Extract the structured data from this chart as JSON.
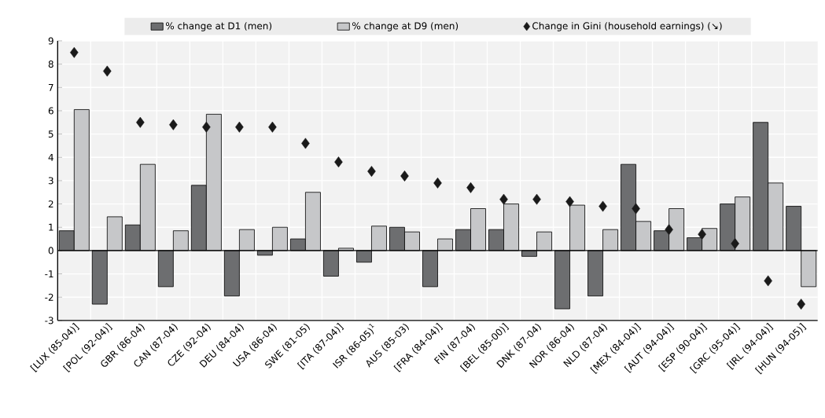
{
  "chart_data": {
    "type": "bar",
    "categories": [
      "[LUX (85-04)]",
      "[POL (92-04)]",
      "GBR (86-04)",
      "CAN (87-04)",
      "CZE (92-04)",
      "DEU (84-04)",
      "USA (86-04)",
      "SWE (81-05)",
      "[ITA (87-04)]",
      "ISR (86-05)$^{1}$",
      "AUS (85-03)",
      "[FRA (84-04)]",
      "FIN (87-04)",
      "[BEL (85-00)]",
      "DNK (87-04)",
      "NOR (86-04)",
      "NLD (87-04)",
      "[MEX (84-04)]",
      "[AUT (94-04)]",
      "[ESP (90-04)]",
      "[GRC (95-04)]",
      "[IRL (94-04)]",
      "[HUN (94-05)]"
    ],
    "series": [
      {
        "name": "% change at D1 (men)",
        "color": "#6d6e70",
        "values": [
          0.85,
          -2.3,
          1.1,
          -1.55,
          2.8,
          -1.95,
          -0.2,
          0.5,
          -1.1,
          -0.5,
          1.0,
          -1.55,
          0.9,
          0.9,
          -0.25,
          -2.5,
          -1.95,
          3.7,
          0.85,
          0.55,
          2.0,
          5.5,
          1.9
        ]
      },
      {
        "name": "% change at D9 (men)",
        "color": "#c6c7c9",
        "values": [
          6.05,
          1.45,
          3.7,
          0.85,
          5.85,
          0.9,
          1.0,
          2.5,
          0.1,
          1.05,
          0.8,
          0.5,
          1.8,
          2.0,
          0.8,
          1.95,
          0.9,
          1.25,
          1.8,
          0.95,
          2.3,
          2.9,
          -1.55
        ]
      },
      {
        "name": "Change in Gini (household earnings) (↘)",
        "color": "#1a1a1a",
        "type": "scatter",
        "marker": "diamond",
        "values": [
          8.5,
          7.7,
          5.5,
          5.4,
          5.3,
          5.3,
          5.3,
          4.6,
          3.8,
          3.4,
          3.2,
          2.9,
          2.7,
          2.2,
          2.2,
          2.1,
          1.9,
          1.8,
          0.9,
          0.7,
          0.3,
          -1.3,
          -2.3
        ]
      }
    ],
    "ylim": [
      -3,
      9
    ],
    "yticks": [
      -3,
      -2,
      -1,
      0,
      1,
      2,
      3,
      4,
      5,
      6,
      7,
      8,
      9
    ],
    "grid": true,
    "legend": "top"
  }
}
